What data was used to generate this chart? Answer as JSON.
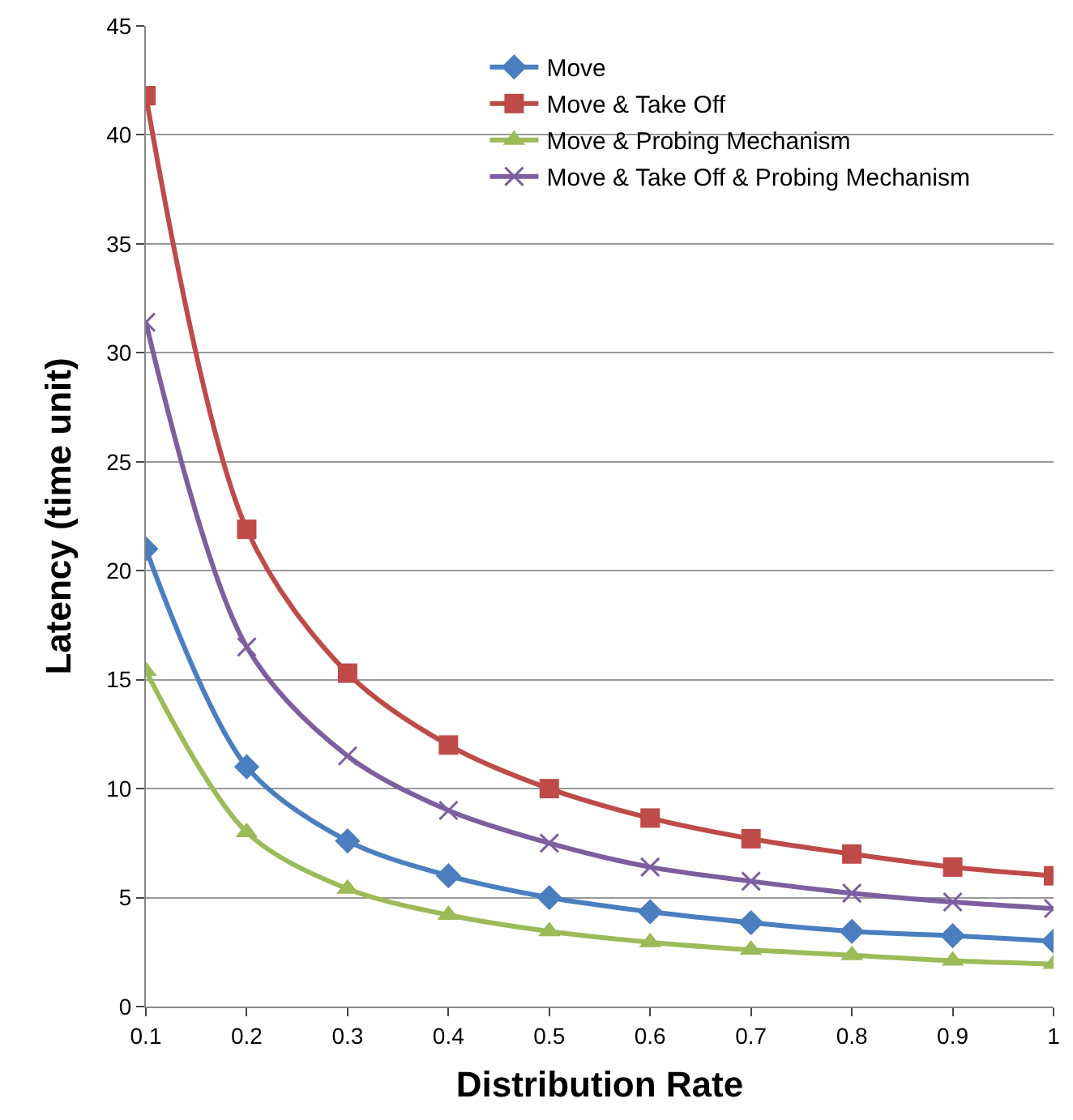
{
  "chart_data": {
    "type": "line",
    "xlabel": "Distribution Rate",
    "ylabel": "Latency (time unit)",
    "x": [
      0.1,
      0.2,
      0.3,
      0.4,
      0.5,
      0.6,
      0.7,
      0.8,
      0.9,
      1
    ],
    "series": [
      {
        "name": "Move",
        "color": "#4a7ebf",
        "marker": "diamond",
        "values": [
          21,
          11,
          7.6,
          6,
          5,
          4.35,
          3.85,
          3.45,
          3.25,
          3.0
        ]
      },
      {
        "name": "Move & Take Off",
        "color": "#be4b48",
        "marker": "square",
        "values": [
          41.8,
          21.9,
          15.3,
          12,
          10,
          8.65,
          7.7,
          7.0,
          6.4,
          6.0
        ]
      },
      {
        "name": "Move & Probing Mechanism",
        "color": "#9bbb59",
        "marker": "triangle",
        "values": [
          15.4,
          8,
          5.4,
          4.2,
          3.45,
          2.95,
          2.6,
          2.35,
          2.1,
          1.95
        ]
      },
      {
        "name": "Move & Take Off & Probing Mechanism",
        "color": "#7d5fa0",
        "marker": "cross",
        "values": [
          31.4,
          16.5,
          11.5,
          9.0,
          7.5,
          6.4,
          5.75,
          5.2,
          4.8,
          4.5
        ]
      }
    ],
    "xlim": [
      0.1,
      1
    ],
    "xticks": [
      0.1,
      0.2,
      0.3,
      0.4,
      0.5,
      0.6,
      0.7,
      0.8,
      0.9,
      1
    ],
    "ylim": [
      0,
      45
    ],
    "yticks": [
      0,
      5,
      10,
      15,
      20,
      25,
      30,
      35,
      40,
      45
    ],
    "grid": "y",
    "legend": "top right",
    "line_style": "solid"
  }
}
